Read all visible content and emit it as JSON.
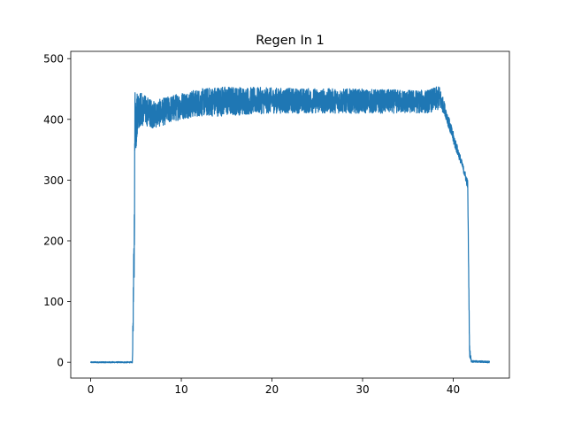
{
  "chart_data": {
    "type": "line",
    "title": "Regen In 1",
    "xlabel": "",
    "ylabel": "",
    "xlim": [
      -2.2,
      46.2
    ],
    "ylim": [
      -26,
      512
    ],
    "x_ticks": [
      0,
      10,
      20,
      30,
      40
    ],
    "y_ticks": [
      0,
      100,
      200,
      300,
      400,
      500
    ],
    "grid": false,
    "legend": "none",
    "line_color": "#1f77b4",
    "series": [
      {
        "envelope_x": [
          0,
          4.6,
          4.8,
          4.9,
          5.0,
          5.2,
          6,
          7,
          8,
          10,
          12,
          14,
          20,
          30,
          37,
          38.5,
          39,
          40,
          41,
          41.6,
          41.8,
          42,
          44
        ],
        "envelope_ylow": [
          -1,
          -1,
          110,
          400,
          340,
          385,
          390,
          385,
          390,
          400,
          405,
          405,
          410,
          410,
          410,
          415,
          410,
          360,
          320,
          285,
          10,
          0,
          -1
        ],
        "envelope_yhigh": [
          1,
          1,
          250,
          487,
          445,
          450,
          440,
          430,
          435,
          445,
          450,
          455,
          452,
          450,
          448,
          455,
          430,
          380,
          330,
          300,
          30,
          3,
          2
        ]
      }
    ]
  }
}
